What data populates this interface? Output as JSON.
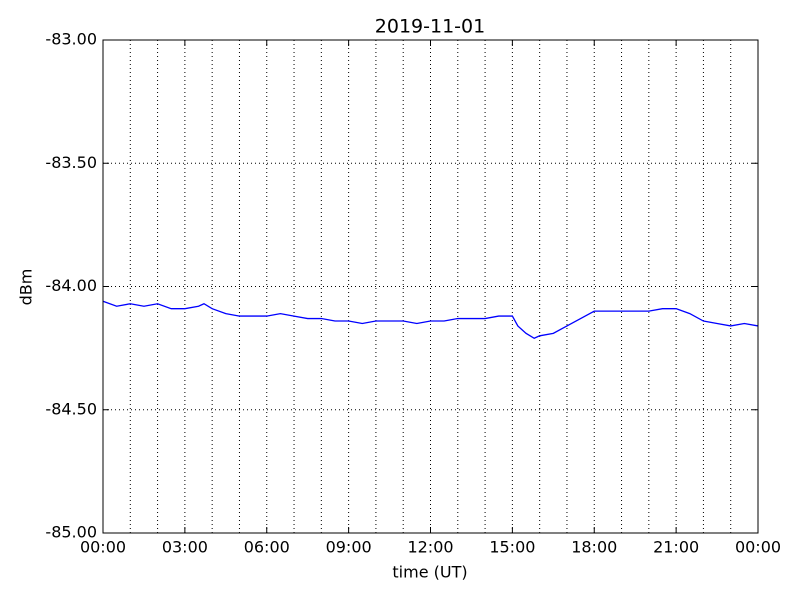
{
  "chart_data": {
    "type": "line",
    "title": "2019-11-01",
    "x_label": "time (UT)",
    "y_label": "dBm",
    "x": [
      0,
      0.5,
      1,
      1.5,
      2,
      2.5,
      3,
      3.5,
      3.7,
      4,
      4.5,
      5,
      5.5,
      6,
      6.5,
      7,
      7.5,
      8,
      8.5,
      9,
      9.5,
      10,
      10.5,
      11,
      11.5,
      12,
      12.5,
      13,
      13.5,
      14,
      14.5,
      15,
      15.2,
      15.5,
      15.8,
      16,
      16.5,
      17,
      17.5,
      18,
      18.5,
      19,
      19.5,
      20,
      20.5,
      21,
      21.5,
      22,
      22.5,
      23,
      23.5,
      24
    ],
    "series": [
      {
        "name": "dBm",
        "color": "#0000ff",
        "values": [
          -84.06,
          -84.08,
          -84.07,
          -84.08,
          -84.07,
          -84.09,
          -84.09,
          -84.08,
          -84.07,
          -84.09,
          -84.11,
          -84.12,
          -84.12,
          -84.12,
          -84.11,
          -84.12,
          -84.13,
          -84.13,
          -84.14,
          -84.14,
          -84.15,
          -84.14,
          -84.14,
          -84.14,
          -84.15,
          -84.14,
          -84.14,
          -84.13,
          -84.13,
          -84.13,
          -84.12,
          -84.12,
          -84.16,
          -84.19,
          -84.21,
          -84.2,
          -84.19,
          -84.16,
          -84.13,
          -84.1,
          -84.1,
          -84.1,
          -84.1,
          -84.1,
          -84.09,
          -84.09,
          -84.11,
          -84.14,
          -84.15,
          -84.16,
          -84.15,
          -84.16
        ]
      }
    ],
    "xlim": [
      0,
      24
    ],
    "xticks": [
      {
        "value": 0,
        "label": "00:00"
      },
      {
        "value": 3,
        "label": "03:00"
      },
      {
        "value": 6,
        "label": "06:00"
      },
      {
        "value": 9,
        "label": "09:00"
      },
      {
        "value": 12,
        "label": "12:00"
      },
      {
        "value": 15,
        "label": "15:00"
      },
      {
        "value": 18,
        "label": "18:00"
      },
      {
        "value": 21,
        "label": "21:00"
      },
      {
        "value": 24,
        "label": "00:00"
      }
    ],
    "xminorticks": [
      1,
      2,
      4,
      5,
      7,
      8,
      10,
      11,
      13,
      14,
      16,
      17,
      19,
      20,
      22,
      23
    ],
    "ylim": [
      -85,
      -83
    ],
    "yticks": [
      {
        "value": -85,
        "label": "-85.00"
      },
      {
        "value": -84.5,
        "label": "-84.50"
      },
      {
        "value": -84,
        "label": "-84.00"
      },
      {
        "value": -83.5,
        "label": "-83.50"
      },
      {
        "value": -83,
        "label": "-83.00"
      }
    ],
    "grid": true
  }
}
